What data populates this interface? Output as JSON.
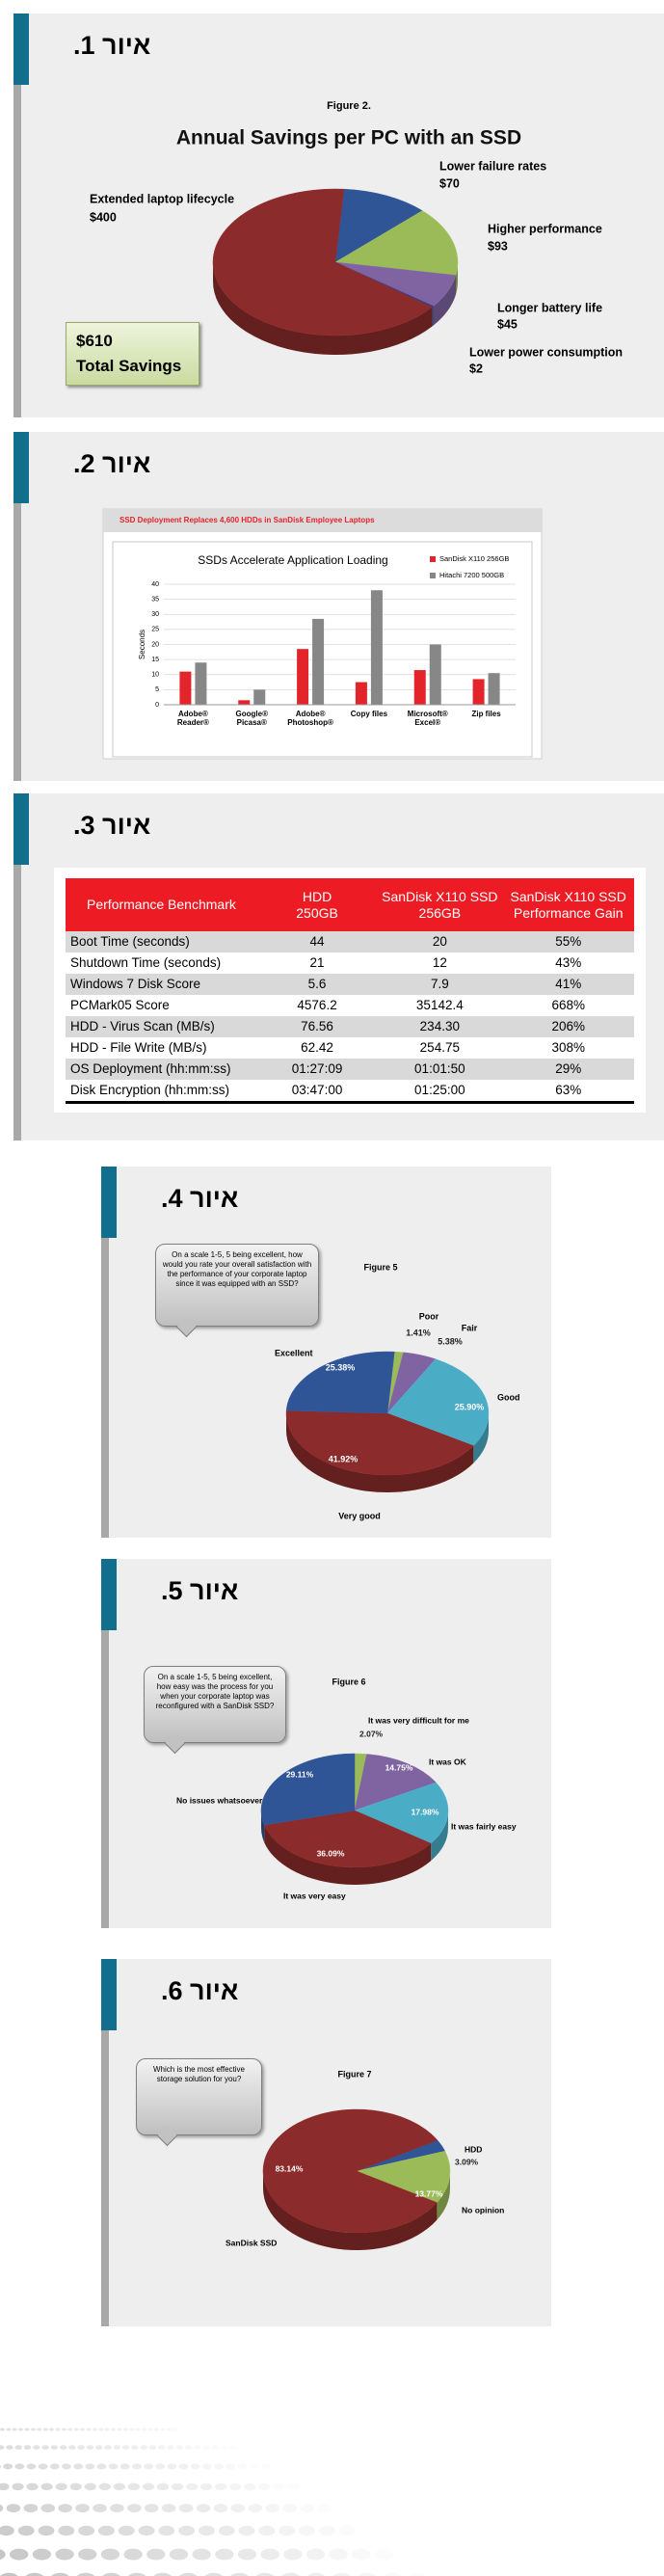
{
  "figures": [
    {
      "heading": "איור 1."
    },
    {
      "heading": "איור 2."
    },
    {
      "heading": "איור 3."
    },
    {
      "heading": "איור 4."
    },
    {
      "heading": "איור 5."
    },
    {
      "heading": "איור 6."
    }
  ],
  "chart_data": [
    {
      "type": "pie",
      "subtitle": "Figure 2.",
      "title": "Annual Savings per PC with an SSD",
      "categories": [
        "Lower failure rates",
        "Higher performance",
        "Longer battery life",
        "Lower power consumption",
        "Extended laptop lifecycle"
      ],
      "values": [
        70,
        93,
        45,
        2,
        400
      ],
      "value_labels": [
        "$70",
        "$93",
        "$45",
        "$2",
        "$400"
      ],
      "colors": [
        "#2f5597",
        "#9bbb59",
        "#8064a2",
        "#3b3b7a",
        "#8b2b2b"
      ],
      "annotation": [
        "$610",
        "Total Savings"
      ]
    },
    {
      "type": "bar",
      "header": "SSD Deployment Replaces 4,600 HDDs in SanDisk Employee Laptops",
      "title": "SSDs Accelerate Application Loading",
      "ylabel": "Seconds",
      "categories": [
        "Adobe® Reader®",
        "Google® Picasa®",
        "Adobe® Photoshop®",
        "Copy files",
        "Microsoft® Excel®",
        "Zip files"
      ],
      "series": [
        {
          "name": "SanDisk X110 256GB",
          "color": "#e3242b",
          "values": [
            11,
            1.5,
            18.5,
            7.5,
            11.5,
            8.5
          ]
        },
        {
          "name": "Hitachi 7200 500GB",
          "color": "#878787",
          "values": [
            14,
            5,
            28.5,
            38,
            20,
            10.5
          ]
        }
      ],
      "ylim": [
        0,
        40
      ],
      "yticks": [
        0,
        5,
        10,
        15,
        20,
        25,
        30,
        35,
        40
      ],
      "grid": true,
      "legend": "top-right"
    },
    {
      "type": "pie",
      "subtitle": "Figure 5",
      "question": "On a scale 1-5, 5 being excellent, how would you rate your overall satisfaction with the performance of your corporate laptop since it was equipped with an SSD?",
      "categories": [
        "Poor",
        "Fair",
        "Good",
        "Very good",
        "Excellent"
      ],
      "values": [
        1.41,
        5.38,
        25.9,
        41.92,
        25.38
      ],
      "value_labels": [
        "1.41%",
        "5.38%",
        "25.90%",
        "41.92%",
        "25.38%"
      ],
      "colors": [
        "#9bbb59",
        "#8064a2",
        "#4bacc6",
        "#8b2b2b",
        "#2f5597"
      ]
    },
    {
      "type": "pie",
      "subtitle": "Figure 6",
      "question": "On a scale 1-5, 5 being excellent, how easy was the process for you when your corporate laptop was reconfigured with a SanDisk SSD?",
      "categories": [
        "It was very difficult for me",
        "It was OK",
        "It was fairly easy",
        "It was very easy",
        "No issues whatsoever"
      ],
      "values": [
        2.07,
        14.75,
        17.98,
        36.09,
        29.11
      ],
      "value_labels": [
        "2.07%",
        "14.75%",
        "17.98%",
        "36.09%",
        "29.11%"
      ],
      "colors": [
        "#9bbb59",
        "#8064a2",
        "#4bacc6",
        "#8b2b2b",
        "#2f5597"
      ]
    },
    {
      "type": "pie",
      "subtitle": "Figure 7",
      "question": "Which is the most effective storage solution for you?",
      "categories": [
        "HDD",
        "No opinion",
        "SanDisk SSD"
      ],
      "values": [
        3.09,
        13.77,
        83.14
      ],
      "value_labels": [
        "3.09%",
        "13.77%",
        "83.14%"
      ],
      "colors": [
        "#2f5597",
        "#9bbb59",
        "#8b2b2b"
      ]
    }
  ],
  "table": {
    "header": [
      [
        "Performance Benchmark"
      ],
      [
        "HDD",
        "250GB"
      ],
      [
        "SanDisk X110 SSD",
        "256GB"
      ],
      [
        "SanDisk X110 SSD",
        "Performance Gain"
      ]
    ],
    "rows": [
      [
        "Boot Time (seconds)",
        "44",
        "20",
        "55%"
      ],
      [
        "Shutdown Time (seconds)",
        "21",
        "12",
        "43%"
      ],
      [
        "Windows 7 Disk Score",
        "5.6",
        "7.9",
        "41%"
      ],
      [
        "PCMark05 Score",
        "4576.2",
        "35142.4",
        "668%"
      ],
      [
        "HDD - Virus Scan (MB/s)",
        "76.56",
        "234.30",
        "206%"
      ],
      [
        "HDD - File Write (MB/s)",
        "62.42",
        "254.75",
        "308%"
      ],
      [
        "OS Deployment (hh:mm:ss)",
        "01:27:09",
        "01:01:50",
        "29%"
      ],
      [
        "Disk Encryption (hh:mm:ss)",
        "03:47:00",
        "01:25:00",
        "63%"
      ]
    ]
  }
}
